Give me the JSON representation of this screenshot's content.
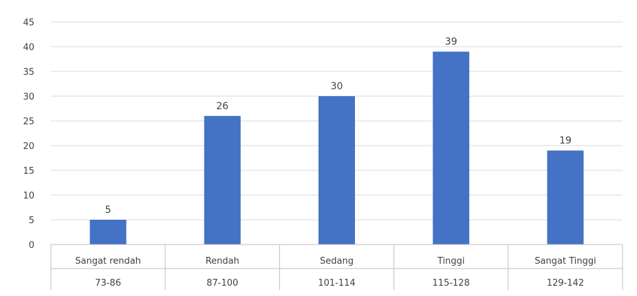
{
  "chart_data": {
    "type": "bar",
    "title": "",
    "xlabel": "",
    "ylabel": "",
    "ylim": [
      0,
      45
    ],
    "yticks": [
      "0",
      "5",
      "10",
      "15",
      "20",
      "25",
      "30",
      "35",
      "40",
      "45"
    ],
    "categories": [
      {
        "label": "Sangat rendah",
        "range": "73-86"
      },
      {
        "label": "Rendah",
        "range": "87-100"
      },
      {
        "label": "Sedang",
        "range": "101-114"
      },
      {
        "label": "Tinggi",
        "range": "115-128"
      },
      {
        "label": "Sangat Tinggi",
        "range": "129-142"
      }
    ],
    "values": [
      5,
      26,
      30,
      39,
      19
    ],
    "data_labels": true,
    "grid": true,
    "legend": "none",
    "colors": {
      "bar": "#4472c4",
      "grid": "#d9d9d9",
      "axis": "#bfbfbf",
      "text": "#404040"
    }
  }
}
